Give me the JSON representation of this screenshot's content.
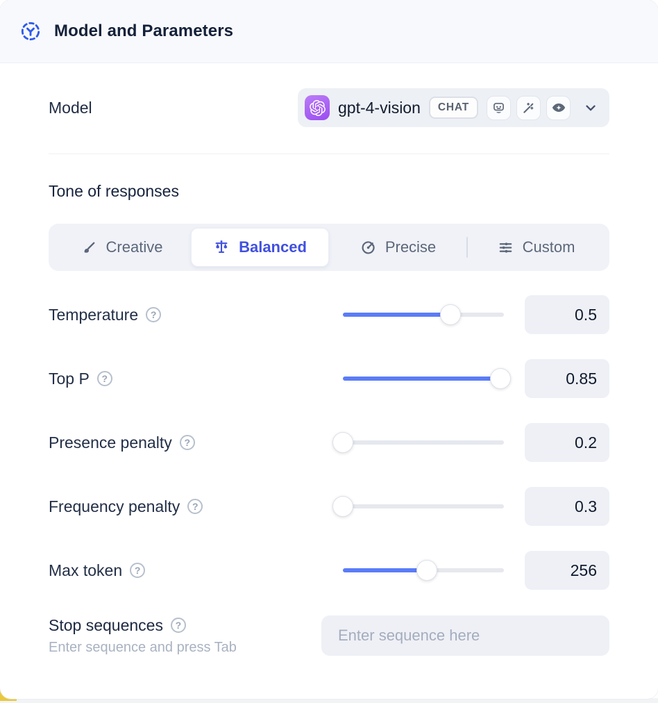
{
  "header": {
    "title": "Model and Parameters",
    "icon": "focus-model-icon"
  },
  "model": {
    "label": "Model",
    "selected_name": "gpt-4-vision",
    "type_badge": "CHAT",
    "provider_icon": "openai-logo",
    "capability_icons": [
      "robot-icon",
      "magic-wand-icon",
      "vision-eye-icon"
    ]
  },
  "tone": {
    "title": "Tone of responses",
    "options": [
      {
        "label": "Creative",
        "icon": "paintbrush-icon",
        "selected": false
      },
      {
        "label": "Balanced",
        "icon": "scales-icon",
        "selected": true
      },
      {
        "label": "Precise",
        "icon": "target-icon",
        "selected": false
      },
      {
        "label": "Custom",
        "icon": "sliders-icon",
        "selected": false
      }
    ]
  },
  "parameters": [
    {
      "label": "Temperature",
      "value": "0.5",
      "fill_pct": 67
    },
    {
      "label": "Top P",
      "value": "0.85",
      "fill_pct": 98
    },
    {
      "label": "Presence penalty",
      "value": "0.2",
      "fill_pct": 0
    },
    {
      "label": "Frequency penalty",
      "value": "0.3",
      "fill_pct": 0
    },
    {
      "label": "Max token",
      "value": "256",
      "fill_pct": 52
    }
  ],
  "stop_sequences": {
    "label": "Stop sequences",
    "hint": "Enter sequence and press Tab",
    "placeholder": "Enter sequence here"
  },
  "help_glyph": "?",
  "colors": {
    "accent_blue": "#5b7cf7",
    "accent_indigo": "#4150e0",
    "header_icon_blue": "#2e5bea",
    "provider_purple": "#9a4df0",
    "peek_yellow": "#e8c83d"
  }
}
